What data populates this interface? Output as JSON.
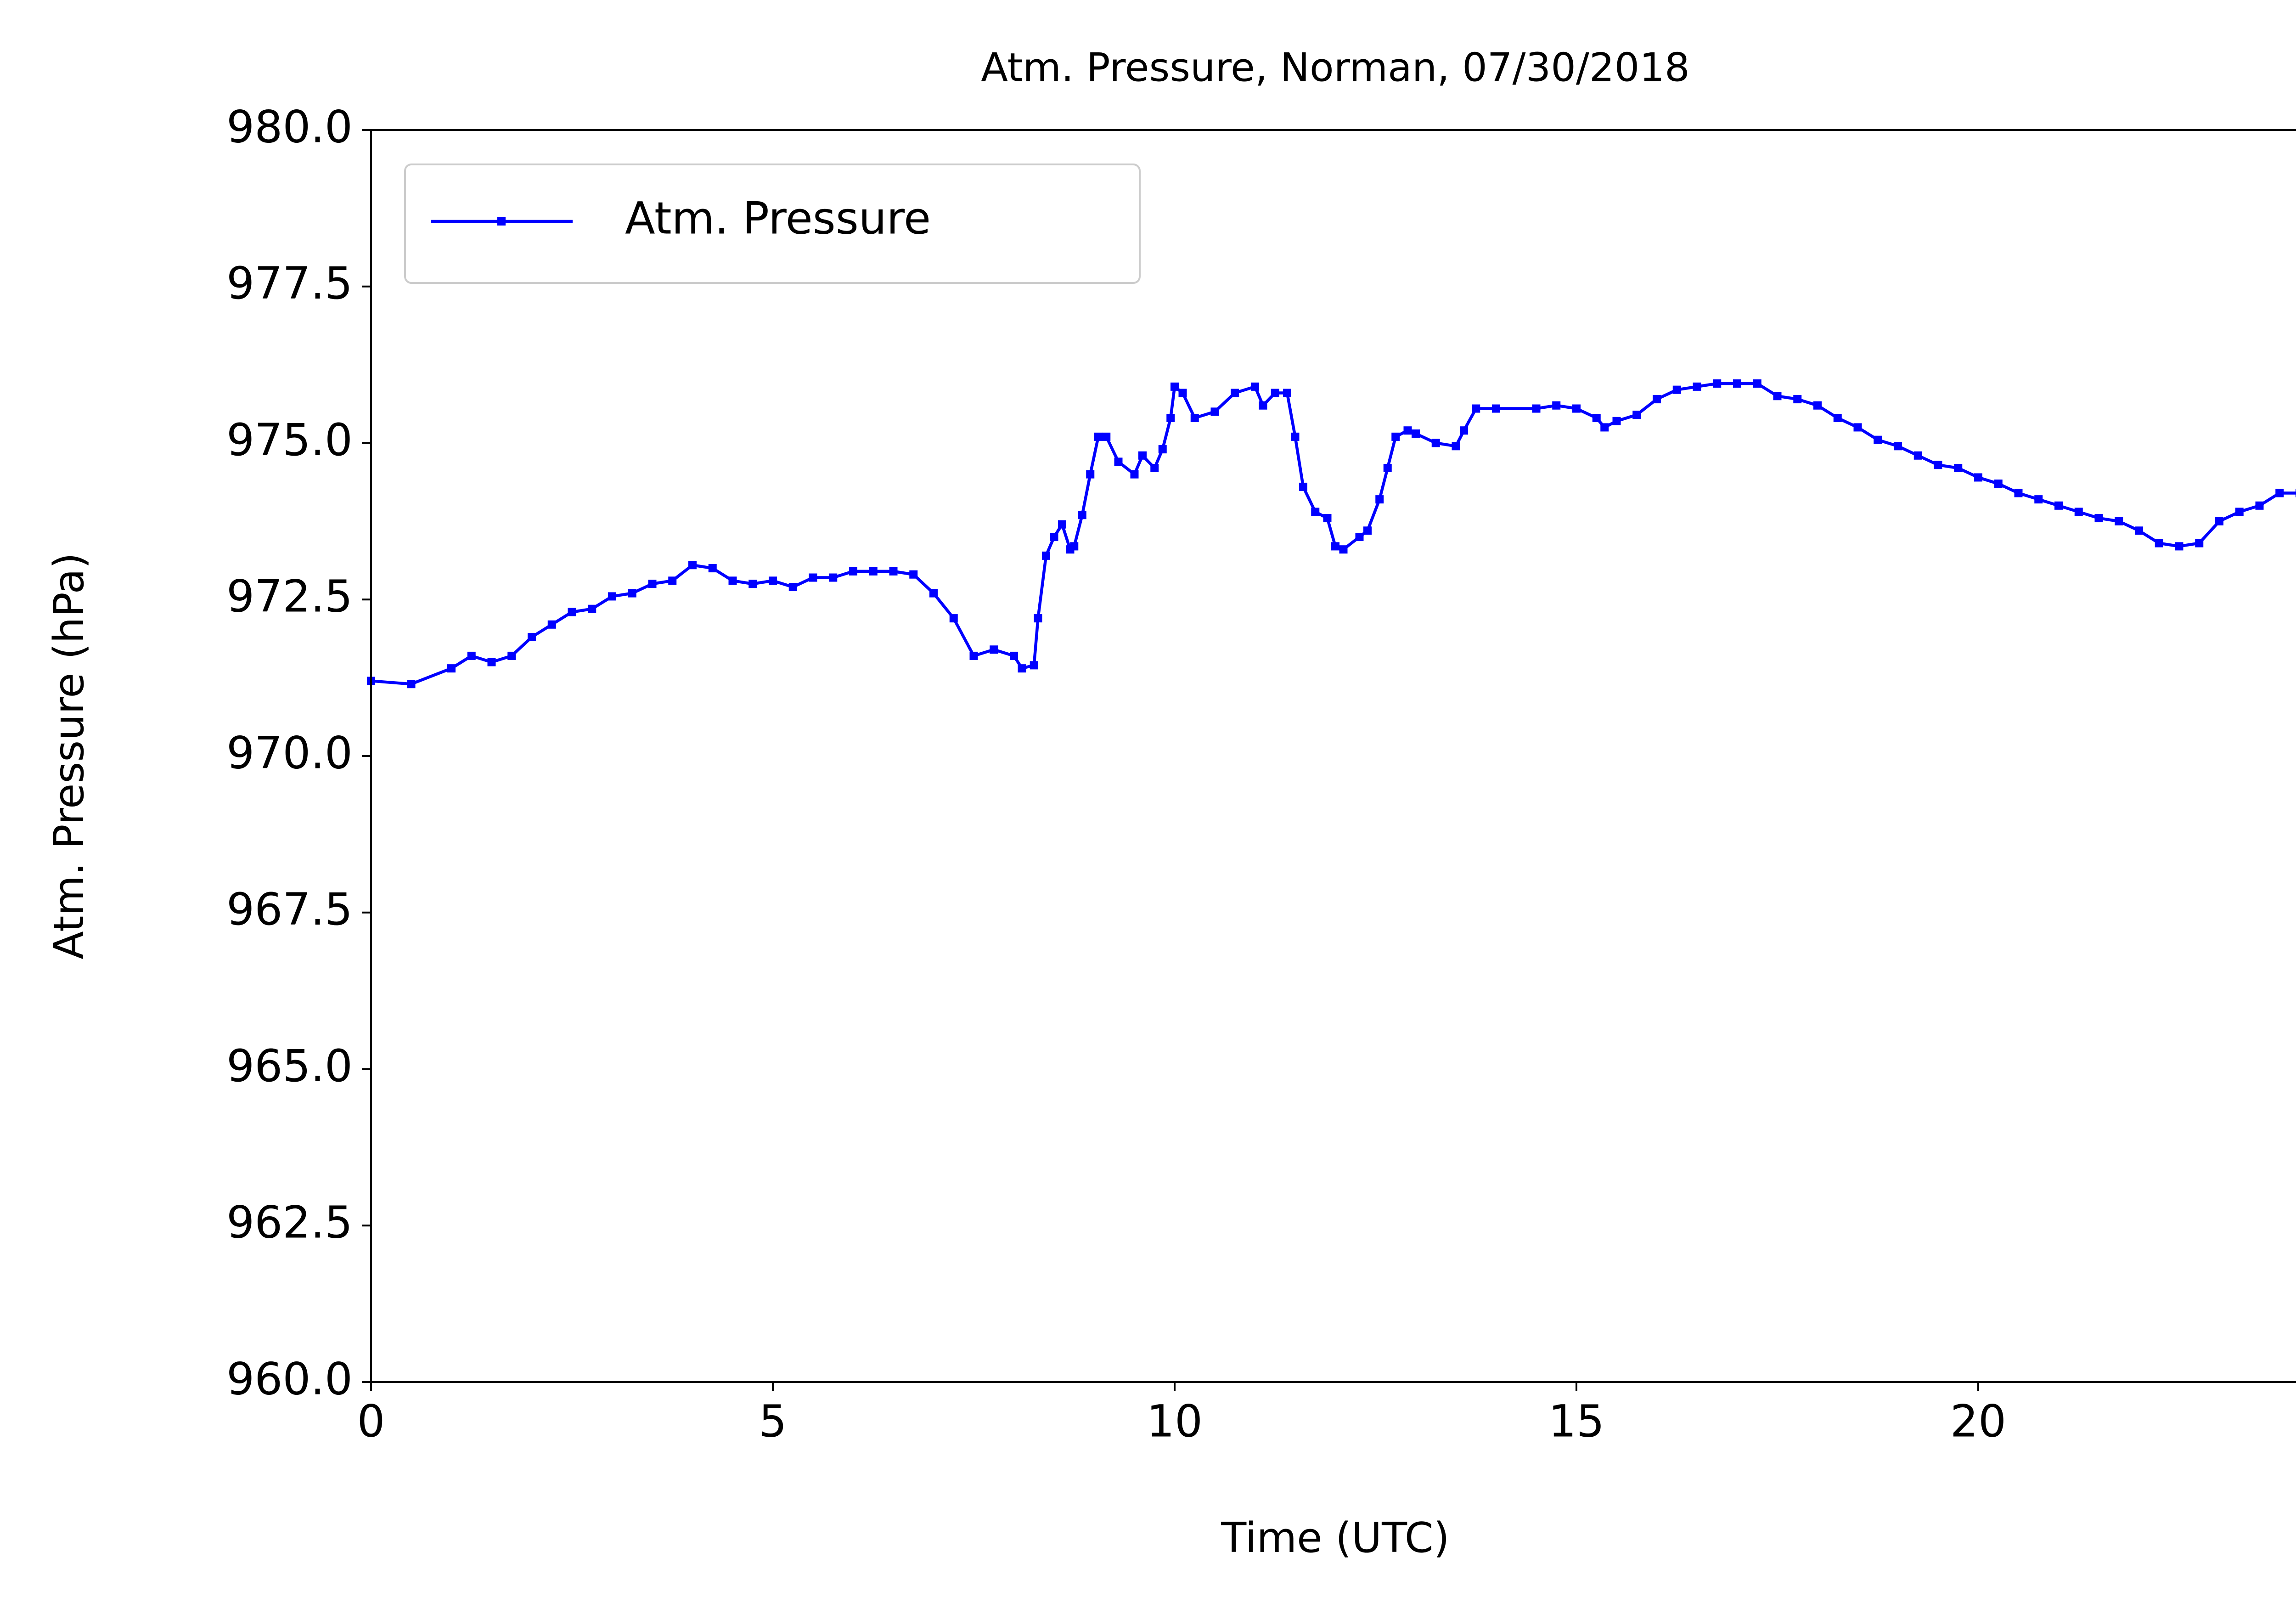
{
  "chart_data": {
    "type": "line",
    "title": "Atm. Pressure, Norman, 07/30/2018",
    "xlabel": "Time (UTC)",
    "ylabel": "Atm. Pressure (hPa)",
    "x": [
      0,
      0.5,
      1.0,
      1.25,
      1.5,
      1.75,
      2.0,
      2.25,
      2.5,
      2.75,
      3.0,
      3.25,
      3.5,
      3.75,
      4.0,
      4.25,
      4.5,
      4.75,
      5.0,
      5.25,
      5.5,
      5.75,
      6.0,
      6.25,
      6.5,
      6.75,
      7.0,
      7.25,
      7.5,
      7.75,
      8.0,
      8.1,
      8.25,
      8.3,
      8.4,
      8.5,
      8.6,
      8.7,
      8.75,
      8.85,
      8.95,
      9.05,
      9.15,
      9.3,
      9.5,
      9.6,
      9.75,
      9.85,
      9.95,
      10.0,
      10.1,
      10.25,
      10.5,
      10.75,
      11.0,
      11.1,
      11.25,
      11.4,
      11.5,
      11.6,
      11.75,
      11.9,
      12.0,
      12.1,
      12.3,
      12.4,
      12.55,
      12.65,
      12.75,
      12.9,
      13.0,
      13.25,
      13.5,
      13.6,
      13.75,
      14.0,
      14.5,
      14.75,
      15.0,
      15.25,
      15.35,
      15.5,
      15.75,
      16.0,
      16.25,
      16.5,
      16.75,
      17.0,
      17.25,
      17.5,
      17.75,
      18.0,
      18.25,
      18.5,
      18.75,
      19.0,
      19.25,
      19.5,
      19.75,
      20.0,
      20.25,
      20.5,
      20.75,
      21.0,
      21.25,
      21.5,
      21.75,
      22.0,
      22.25,
      22.5,
      22.75,
      23.0,
      23.25,
      23.5,
      23.75,
      24.0
    ],
    "series": [
      {
        "name": "Atm. Pressure",
        "color": "#0000ff",
        "values": [
          971.2,
          971.15,
          971.4,
          971.6,
          971.5,
          971.6,
          971.9,
          972.1,
          972.3,
          972.35,
          972.55,
          972.6,
          972.75,
          972.8,
          973.05,
          973.0,
          972.8,
          972.75,
          972.8,
          972.7,
          972.85,
          972.85,
          972.95,
          972.95,
          972.95,
          972.9,
          972.6,
          972.2,
          971.6,
          971.7,
          971.6,
          971.4,
          971.45,
          972.2,
          973.2,
          973.5,
          973.7,
          973.3,
          973.35,
          973.85,
          974.5,
          975.1,
          975.1,
          974.7,
          974.5,
          974.8,
          974.6,
          974.9,
          975.4,
          975.9,
          975.8,
          975.4,
          975.5,
          975.8,
          975.9,
          975.6,
          975.8,
          975.8,
          975.1,
          974.3,
          973.9,
          973.8,
          973.35,
          973.3,
          973.5,
          973.6,
          974.1,
          974.6,
          975.1,
          975.2,
          975.15,
          975.0,
          974.95,
          975.2,
          975.55,
          975.55,
          975.55,
          975.6,
          975.55,
          975.4,
          975.25,
          975.35,
          975.45,
          975.7,
          975.85,
          975.9,
          975.95,
          975.95,
          975.95,
          975.75,
          975.7,
          975.6,
          975.4,
          975.25,
          975.05,
          974.95,
          974.8,
          974.65,
          974.6,
          974.45,
          974.35,
          974.2,
          974.1,
          974.0,
          973.9,
          973.8,
          973.75,
          973.6,
          973.4,
          973.35,
          973.4,
          973.75,
          973.9,
          974.0,
          974.2,
          974.2
        ]
      }
    ],
    "xlim": [
      0,
      24
    ],
    "xticks": [
      0,
      5,
      10,
      15,
      20
    ],
    "ylim": [
      960,
      980
    ],
    "yticks": [
      {
        "value": 960,
        "label": "960.0"
      },
      {
        "value": 962.5,
        "label": "962.5"
      },
      {
        "value": 965,
        "label": "965.0"
      },
      {
        "value": 967.5,
        "label": "967.5"
      },
      {
        "value": 970,
        "label": "970.0"
      },
      {
        "value": 972.5,
        "label": "972.5"
      },
      {
        "value": 975,
        "label": "975.0"
      },
      {
        "value": 977.5,
        "label": "977.5"
      },
      {
        "value": 980,
        "label": "980.0"
      }
    ],
    "grid": false,
    "legend": "upper left"
  }
}
